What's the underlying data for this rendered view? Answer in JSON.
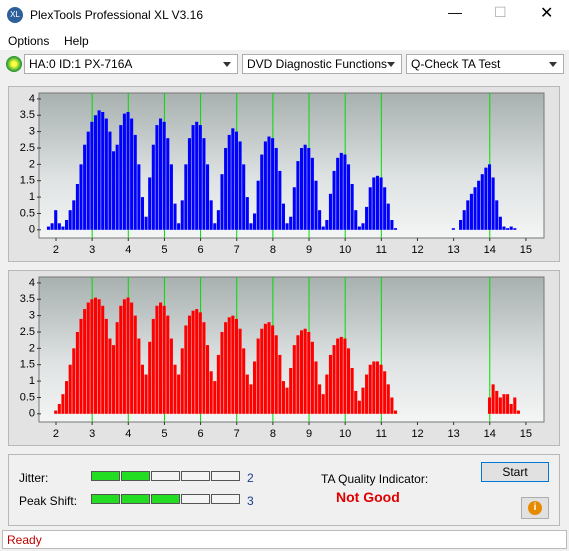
{
  "window": {
    "title": "PlexTools Professional XL V3.16",
    "menu": [
      "Options",
      "Help"
    ],
    "dropdowns": [
      "HA:0 ID:1  PX-716A",
      "DVD Diagnostic Functions",
      "Q-Check TA Test"
    ]
  },
  "chart_data": [
    {
      "type": "bar",
      "color": "#0000ff",
      "reference_color": "#00dd00",
      "reference_lines": [
        3,
        4,
        5,
        6,
        7,
        8,
        9,
        10,
        11,
        14
      ],
      "xlim": [
        1.53,
        15.5
      ],
      "ylim": [
        -0.25,
        4.18
      ],
      "xticks": [
        2,
        3,
        4,
        5,
        6,
        7,
        8,
        9,
        10,
        11,
        12,
        13,
        14,
        15
      ],
      "yticks": [
        0,
        0.5,
        1,
        1.5,
        2,
        2.5,
        3,
        3.5,
        4
      ],
      "x": [
        1.8,
        1.9,
        2.0,
        2.1,
        2.2,
        2.3,
        2.4,
        2.5,
        2.6,
        2.7,
        2.8,
        2.9,
        3.0,
        3.1,
        3.2,
        3.3,
        3.4,
        3.5,
        3.6,
        3.7,
        3.8,
        3.9,
        4.0,
        4.1,
        4.2,
        4.3,
        4.4,
        4.5,
        4.6,
        4.7,
        4.8,
        4.9,
        5.0,
        5.1,
        5.2,
        5.3,
        5.4,
        5.5,
        5.6,
        5.7,
        5.8,
        5.9,
        6.0,
        6.1,
        6.2,
        6.3,
        6.4,
        6.5,
        6.6,
        6.7,
        6.8,
        6.9,
        7.0,
        7.1,
        7.2,
        7.3,
        7.4,
        7.5,
        7.6,
        7.7,
        7.8,
        7.9,
        8.0,
        8.1,
        8.2,
        8.3,
        8.4,
        8.5,
        8.6,
        8.7,
        8.8,
        8.9,
        9.0,
        9.1,
        9.2,
        9.3,
        9.4,
        9.5,
        9.6,
        9.7,
        9.8,
        9.9,
        10.0,
        10.1,
        10.2,
        10.3,
        10.4,
        10.5,
        10.6,
        10.7,
        10.8,
        10.9,
        11.0,
        11.1,
        11.2,
        11.3,
        11.4,
        11.5,
        11.6,
        11.7,
        11.8,
        11.9,
        12.0,
        12.1,
        12.2,
        12.3,
        12.4,
        12.5,
        12.6,
        12.7,
        12.8,
        12.9,
        13.0,
        13.1,
        13.2,
        13.3,
        13.4,
        13.5,
        13.6,
        13.7,
        13.8,
        13.9,
        14.0,
        14.1,
        14.2,
        14.3,
        14.4,
        14.5,
        14.6,
        14.7,
        14.8
      ],
      "values": [
        0.1,
        0.2,
        0.6,
        0.2,
        0.1,
        0.3,
        0.6,
        0.9,
        1.4,
        2.0,
        2.6,
        3.0,
        3.3,
        3.5,
        3.65,
        3.6,
        3.4,
        3.0,
        2.4,
        2.6,
        3.2,
        3.55,
        3.6,
        3.4,
        2.9,
        2.0,
        1.0,
        0.4,
        1.6,
        2.6,
        3.2,
        3.4,
        3.3,
        2.8,
        2.0,
        0.8,
        0.2,
        0.9,
        2.0,
        2.8,
        3.2,
        3.3,
        3.2,
        2.8,
        2.0,
        0.9,
        0.2,
        0.6,
        1.7,
        2.5,
        2.9,
        3.1,
        3.0,
        2.7,
        2.0,
        1.0,
        0.2,
        0.5,
        1.5,
        2.3,
        2.7,
        2.85,
        2.8,
        2.5,
        1.8,
        0.8,
        0.2,
        0.4,
        1.3,
        2.1,
        2.5,
        2.6,
        2.5,
        2.2,
        1.5,
        0.6,
        0.1,
        0.3,
        1.1,
        1.8,
        2.2,
        2.35,
        2.3,
        2.0,
        1.4,
        0.6,
        0.1,
        0.2,
        0.7,
        1.3,
        1.6,
        1.65,
        1.6,
        1.3,
        0.8,
        0.3,
        0.05,
        0,
        0,
        0,
        0,
        0,
        0,
        0,
        0,
        0,
        0,
        0,
        0,
        0,
        0,
        0,
        0.05,
        0,
        0.3,
        0.6,
        0.9,
        1.1,
        1.3,
        1.5,
        1.7,
        1.9,
        2.0,
        1.6,
        0.9,
        0.4,
        0.1,
        0.05,
        0.1,
        0.05,
        0
      ]
    },
    {
      "type": "bar",
      "color": "#ff0000",
      "reference_color": "#00dd00",
      "reference_lines": [
        3,
        4,
        5,
        6,
        7,
        8,
        9,
        10,
        11,
        14
      ],
      "xlim": [
        1.53,
        15.5
      ],
      "ylim": [
        -0.25,
        4.18
      ],
      "xticks": [
        2,
        3,
        4,
        5,
        6,
        7,
        8,
        9,
        10,
        11,
        12,
        13,
        14,
        15
      ],
      "yticks": [
        0,
        0.5,
        1,
        1.5,
        2,
        2.5,
        3,
        3.5,
        4
      ],
      "x": [
        1.8,
        1.9,
        2.0,
        2.1,
        2.2,
        2.3,
        2.4,
        2.5,
        2.6,
        2.7,
        2.8,
        2.9,
        3.0,
        3.1,
        3.2,
        3.3,
        3.4,
        3.5,
        3.6,
        3.7,
        3.8,
        3.9,
        4.0,
        4.1,
        4.2,
        4.3,
        4.4,
        4.5,
        4.6,
        4.7,
        4.8,
        4.9,
        5.0,
        5.1,
        5.2,
        5.3,
        5.4,
        5.5,
        5.6,
        5.7,
        5.8,
        5.9,
        6.0,
        6.1,
        6.2,
        6.3,
        6.4,
        6.5,
        6.6,
        6.7,
        6.8,
        6.9,
        7.0,
        7.1,
        7.2,
        7.3,
        7.4,
        7.5,
        7.6,
        7.7,
        7.8,
        7.9,
        8.0,
        8.1,
        8.2,
        8.3,
        8.4,
        8.5,
        8.6,
        8.7,
        8.8,
        8.9,
        9.0,
        9.1,
        9.2,
        9.3,
        9.4,
        9.5,
        9.6,
        9.7,
        9.8,
        9.9,
        10.0,
        10.1,
        10.2,
        10.3,
        10.4,
        10.5,
        10.6,
        10.7,
        10.8,
        10.9,
        11.0,
        11.1,
        11.2,
        11.3,
        11.4,
        11.5,
        11.6,
        11.7,
        11.8,
        11.9,
        12.0,
        12.1,
        12.2,
        12.3,
        12.4,
        12.5,
        12.6,
        12.7,
        12.8,
        12.9,
        13.0,
        13.1,
        13.2,
        13.3,
        13.4,
        13.5,
        13.6,
        13.7,
        13.8,
        13.9,
        14.0,
        14.1,
        14.2,
        14.3,
        14.4,
        14.5,
        14.6,
        14.7,
        14.8
      ],
      "values": [
        0,
        0,
        0.1,
        0.3,
        0.6,
        1.0,
        1.5,
        2.0,
        2.5,
        2.9,
        3.2,
        3.4,
        3.5,
        3.55,
        3.5,
        3.3,
        2.9,
        2.3,
        2.1,
        2.8,
        3.3,
        3.5,
        3.55,
        3.4,
        3.0,
        2.3,
        1.5,
        1.2,
        2.2,
        2.9,
        3.3,
        3.4,
        3.3,
        3.0,
        2.3,
        1.5,
        1.2,
        2.0,
        2.7,
        3.0,
        3.15,
        3.2,
        3.1,
        2.8,
        2.1,
        1.3,
        1.0,
        1.8,
        2.5,
        2.8,
        2.95,
        3.0,
        2.9,
        2.6,
        2.0,
        1.2,
        0.9,
        1.6,
        2.3,
        2.6,
        2.75,
        2.8,
        2.7,
        2.4,
        1.8,
        1.0,
        0.8,
        1.4,
        2.1,
        2.4,
        2.55,
        2.6,
        2.5,
        2.2,
        1.6,
        0.9,
        0.6,
        1.2,
        1.8,
        2.1,
        2.3,
        2.35,
        2.3,
        2.0,
        1.4,
        0.7,
        0.4,
        0.8,
        1.2,
        1.5,
        1.6,
        1.6,
        1.5,
        1.3,
        0.9,
        0.5,
        0.1,
        0,
        0,
        0,
        0,
        0,
        0,
        0,
        0,
        0,
        0,
        0,
        0,
        0,
        0,
        0,
        0,
        0,
        0,
        0,
        0,
        0,
        0,
        0,
        0,
        0,
        0.5,
        0.9,
        0.7,
        0.5,
        0.6,
        0.6,
        0.3,
        0.5,
        0.1
      ]
    }
  ],
  "quality": {
    "jitter_label": "Jitter:",
    "jitter_value": 2,
    "peak_label": "Peak Shift:",
    "peak_value": 3,
    "indicator_label": "TA Quality Indicator:",
    "indicator": "Not Good",
    "start": "Start",
    "status": "Ready"
  }
}
